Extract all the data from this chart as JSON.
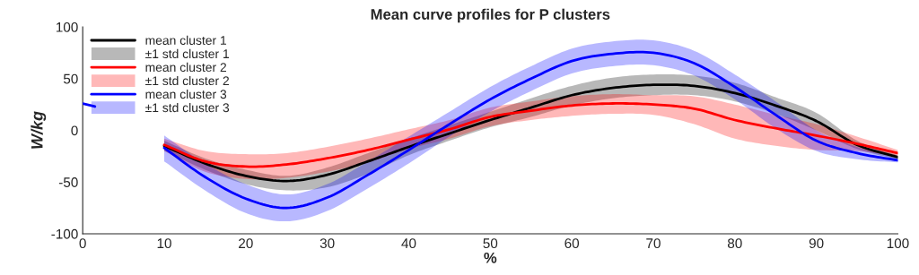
{
  "chart_data": {
    "type": "line",
    "title": "Mean curve profiles for P clusters",
    "xlabel": "%",
    "ylabel": "W/kg",
    "xlim": [
      0,
      100
    ],
    "xticks": [
      0,
      10,
      20,
      30,
      40,
      50,
      60,
      70,
      80,
      90,
      100
    ],
    "ylim": [
      -100,
      100
    ],
    "yticks": [
      -100,
      -50,
      0,
      50,
      100
    ],
    "grid": false,
    "legend": "top left",
    "line_style": "solid",
    "marker": "none",
    "annotations": [
      "±1 std cluster 1",
      "±1 std cluster 2",
      "±1 std cluster 3"
    ],
    "series": [
      {
        "name": "mean cluster 1",
        "color": "#000000",
        "x": [
          10,
          15,
          20,
          25,
          30,
          35,
          40,
          45,
          50,
          55,
          60,
          65,
          70,
          75,
          80,
          85,
          90,
          95,
          100
        ],
        "values": [
          -15,
          -32,
          -44,
          -49,
          -43,
          -30,
          -16,
          -3,
          10,
          22,
          34,
          41,
          44,
          43,
          36,
          24,
          9,
          -14,
          -26
        ],
        "lower": [
          -20,
          -38,
          -52,
          -58,
          -55,
          -42,
          -24,
          -10,
          3,
          13,
          24,
          31,
          34,
          34,
          28,
          16,
          0,
          -18,
          -28
        ],
        "upper": [
          -10,
          -27,
          -38,
          -44,
          -36,
          -22,
          -8,
          5,
          18,
          31,
          43,
          51,
          54,
          53,
          46,
          32,
          17,
          -10,
          -24
        ]
      },
      {
        "name": "mean cluster 2",
        "color": "#ff0000",
        "x": [
          10,
          15,
          20,
          25,
          30,
          35,
          40,
          45,
          50,
          55,
          60,
          65,
          70,
          75,
          80,
          85,
          90,
          95,
          100
        ],
        "values": [
          -14,
          -30,
          -35,
          -33,
          -27,
          -19,
          -9,
          1,
          13,
          19,
          24,
          26,
          25,
          21,
          10,
          2,
          -5,
          -13,
          -22
        ],
        "lower": [
          -20,
          -40,
          -47,
          -46,
          -40,
          -31,
          -18,
          -8,
          4,
          10,
          14,
          16,
          15,
          6,
          -8,
          -15,
          -19,
          -20,
          -25
        ],
        "upper": [
          -8,
          -20,
          -23,
          -22,
          -16,
          -8,
          1,
          10,
          22,
          28,
          33,
          35,
          34,
          33,
          25,
          15,
          6,
          -6,
          -19
        ]
      },
      {
        "name": "mean cluster 3",
        "color": "#0000ff",
        "x": [
          0,
          1.5,
          5,
          10,
          15,
          20,
          25,
          30,
          35,
          40,
          45,
          50,
          55,
          60,
          65,
          70,
          75,
          80,
          85,
          90,
          95,
          100
        ],
        "values": [
          26,
          23,
          null,
          -17,
          -45,
          -66,
          -75,
          -65,
          -43,
          -19,
          6,
          30,
          50,
          67,
          74,
          75,
          65,
          42,
          15,
          -10,
          -22,
          -29
        ],
        "lower": [
          null,
          null,
          null,
          -30,
          -58,
          -80,
          -88,
          -78,
          -56,
          -32,
          -6,
          18,
          38,
          55,
          62,
          63,
          53,
          30,
          2,
          -20,
          -28,
          -31
        ],
        "upper": [
          null,
          null,
          null,
          -5,
          -32,
          -52,
          -62,
          -52,
          -30,
          -6,
          18,
          42,
          62,
          79,
          86,
          87,
          77,
          54,
          28,
          0,
          -16,
          -27
        ]
      }
    ]
  }
}
